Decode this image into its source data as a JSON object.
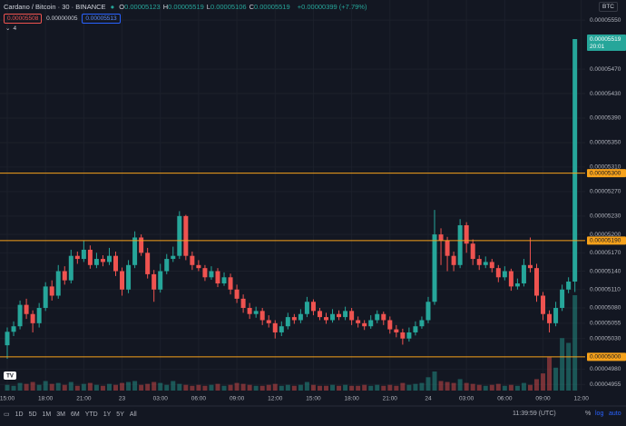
{
  "header": {
    "symbol": "Cardano / Bitcoin · 30 · BINANCE",
    "ohlc": [
      {
        "key": "O",
        "value": "0.00005123"
      },
      {
        "key": "H",
        "value": "0.00005519"
      },
      {
        "key": "L",
        "value": "0.00005106"
      },
      {
        "key": "C",
        "value": "0.00005519"
      }
    ],
    "change": "+0.00000399 (+7.79%)",
    "sell": "0.00005508",
    "spread": "0.00000005",
    "buy": "0.00005513",
    "indicators": "4",
    "currency": "BTC"
  },
  "toolbar": {
    "ranges": [
      "1D",
      "5D",
      "1M",
      "3M",
      "6M",
      "YTD",
      "1Y",
      "5Y",
      "All"
    ],
    "clock": "11:39:59 (UTC)",
    "percent": "%",
    "log": "log",
    "auto": "auto"
  },
  "chart_data": {
    "type": "candlestick",
    "up_color": "#26a69a",
    "down_color": "#ef5350",
    "grid": true,
    "categories": [
      "15:00",
      null,
      null,
      null,
      null,
      null,
      "18:00",
      null,
      null,
      null,
      null,
      null,
      "21:00",
      null,
      null,
      null,
      null,
      null,
      "23",
      null,
      null,
      null,
      null,
      null,
      "03:00",
      null,
      null,
      null,
      null,
      null,
      "06:00",
      null,
      null,
      null,
      null,
      null,
      "09:00",
      null,
      null,
      null,
      null,
      null,
      "12:00",
      null,
      null,
      null,
      null,
      null,
      "15:00",
      null,
      null,
      null,
      null,
      null,
      "18:00",
      null,
      null,
      null,
      null,
      null,
      "21:00",
      null,
      null,
      null,
      null,
      null,
      "24",
      null,
      null,
      null,
      null,
      null,
      "03:00",
      null,
      null,
      null,
      null,
      null,
      "06:00",
      null,
      null,
      null,
      null,
      null,
      "09:00",
      null,
      null,
      null,
      null,
      null,
      "12:00"
    ],
    "open": [
      5.019e-05,
      5.041e-05,
      5.05e-05,
      5.085e-05,
      5.07e-05,
      5.055e-05,
      5.08e-05,
      5.115e-05,
      5.1e-05,
      5.14e-05,
      5.125e-05,
      5.165e-05,
      5.16e-05,
      5.175e-05,
      5.15e-05,
      5.16e-05,
      5.155e-05,
      5.165e-05,
      5.14e-05,
      5.11e-05,
      5.15e-05,
      5.195e-05,
      5.17e-05,
      5.135e-05,
      5.11e-05,
      5.14e-05,
      5.16e-05,
      5.165e-05,
      5.23e-05,
      5.165e-05,
      5.15e-05,
      5.145e-05,
      5.13e-05,
      5.14e-05,
      5.12e-05,
      5.13e-05,
      5.11e-05,
      5.095e-05,
      5.08e-05,
      5.07e-05,
      5.075e-05,
      5.06e-05,
      5.055e-05,
      5.04e-05,
      5.05e-05,
      5.065e-05,
      5.06e-05,
      5.07e-05,
      5.09e-05,
      5.075e-05,
      5.065e-05,
      5.06e-05,
      5.07e-05,
      5.065e-05,
      5.075e-05,
      5.06e-05,
      5.055e-05,
      5.05e-05,
      5.06e-05,
      5.07e-05,
      5.06e-05,
      5.045e-05,
      5.04e-05,
      5.03e-05,
      5.04e-05,
      5.05e-05,
      5.06e-05,
      5.09e-05,
      5.2e-05,
      5.19e-05,
      5.165e-05,
      5.15e-05,
      5.215e-05,
      5.185e-05,
      5.16e-05,
      5.15e-05,
      5.155e-05,
      5.145e-05,
      5.13e-05,
      5.14e-05,
      5.115e-05,
      5.12e-05,
      5.15e-05,
      5.145e-05,
      5.1e-05,
      5.07e-05,
      5.055e-05,
      5.08e-05,
      5.11e-05,
      5.123e-05,
      null
    ],
    "high": [
      5.048e-05,
      5.058e-05,
      5.092e-05,
      5.095e-05,
      5.076e-05,
      5.088e-05,
      5.122e-05,
      5.125e-05,
      5.15e-05,
      5.148e-05,
      5.175e-05,
      5.172e-05,
      5.19e-05,
      5.182e-05,
      5.17e-05,
      5.166e-05,
      5.178e-05,
      5.172e-05,
      5.146e-05,
      5.158e-05,
      5.205e-05,
      5.2e-05,
      5.178e-05,
      5.142e-05,
      5.152e-05,
      5.168e-05,
      5.18e-05,
      5.238e-05,
      5.232e-05,
      5.172e-05,
      5.158e-05,
      5.15e-05,
      5.148e-05,
      5.145e-05,
      5.138e-05,
      5.136e-05,
      5.118e-05,
      5.102e-05,
      5.088e-05,
      5.082e-05,
      5.08e-05,
      5.068e-05,
      5.06e-05,
      5.058e-05,
      5.072e-05,
      5.07e-05,
      5.078e-05,
      5.098e-05,
      5.094e-05,
      5.08e-05,
      5.072e-05,
      5.078e-05,
      5.076e-05,
      5.082e-05,
      5.08e-05,
      5.066e-05,
      5.06e-05,
      5.068e-05,
      5.076e-05,
      5.074e-05,
      5.066e-05,
      5.052e-05,
      5.046e-05,
      5.048e-05,
      5.058e-05,
      5.066e-05,
      5.098e-05,
      5.24e-05,
      5.21e-05,
      5.196e-05,
      5.172e-05,
      5.225e-05,
      5.22e-05,
      5.192e-05,
      5.166e-05,
      5.164e-05,
      5.16e-05,
      5.15e-05,
      5.148e-05,
      5.144e-05,
      5.128e-05,
      5.16e-05,
      5.195e-05,
      5.152e-05,
      5.106e-05,
      5.076e-05,
      5.09e-05,
      5.118e-05,
      5.13e-05,
      5.519e-05,
      null
    ],
    "low": [
      4.997e-05,
      5.034e-05,
      5.045e-05,
      5.062e-05,
      5.04e-05,
      5.048e-05,
      5.075e-05,
      5.092e-05,
      5.095e-05,
      5.118e-05,
      5.12e-05,
      5.152e-05,
      5.155e-05,
      5.144e-05,
      5.145e-05,
      5.148e-05,
      5.15e-05,
      5.132e-05,
      5.1e-05,
      5.104e-05,
      5.145e-05,
      5.165e-05,
      5.128e-05,
      5.09e-05,
      5.105e-05,
      5.135e-05,
      5.155e-05,
      5.16e-05,
      5.158e-05,
      5.142e-05,
      5.14e-05,
      5.124e-05,
      5.126e-05,
      5.114e-05,
      5.116e-05,
      5.102e-05,
      5.088e-05,
      5.072e-05,
      5.062e-05,
      5.064e-05,
      5.052e-05,
      5.048e-05,
      5.03e-05,
      5.034e-05,
      5.045e-05,
      5.054e-05,
      5.055e-05,
      5.065e-05,
      5.068e-05,
      5.06e-05,
      5.054e-05,
      5.056e-05,
      5.06e-05,
      5.06e-05,
      5.052e-05,
      5.048e-05,
      5.044e-05,
      5.046e-05,
      5.055e-05,
      5.052e-05,
      5.038e-05,
      5.032e-05,
      5.02e-05,
      5.025e-05,
      5.035e-05,
      5.046e-05,
      5.055e-05,
      5.085e-05,
      5.15e-05,
      5.14e-05,
      5.14e-05,
      5.145e-05,
      5.17e-05,
      5.15e-05,
      5.142e-05,
      5.145e-05,
      5.138e-05,
      5.122e-05,
      5.125e-05,
      5.108e-05,
      5.11e-05,
      5.115e-05,
      5.138e-05,
      5.09e-05,
      5.06e-05,
      5.04e-05,
      5.05e-05,
      5.075e-05,
      5.104e-05,
      5.106e-05,
      null
    ],
    "close": [
      5.041e-05,
      5.05e-05,
      5.085e-05,
      5.07e-05,
      5.055e-05,
      5.08e-05,
      5.115e-05,
      5.1e-05,
      5.14e-05,
      5.125e-05,
      5.165e-05,
      5.16e-05,
      5.175e-05,
      5.15e-05,
      5.16e-05,
      5.155e-05,
      5.165e-05,
      5.14e-05,
      5.11e-05,
      5.15e-05,
      5.195e-05,
      5.17e-05,
      5.135e-05,
      5.11e-05,
      5.14e-05,
      5.16e-05,
      5.165e-05,
      5.23e-05,
      5.165e-05,
      5.15e-05,
      5.145e-05,
      5.13e-05,
      5.14e-05,
      5.12e-05,
      5.13e-05,
      5.11e-05,
      5.095e-05,
      5.08e-05,
      5.07e-05,
      5.075e-05,
      5.06e-05,
      5.055e-05,
      5.04e-05,
      5.05e-05,
      5.065e-05,
      5.06e-05,
      5.07e-05,
      5.09e-05,
      5.075e-05,
      5.065e-05,
      5.06e-05,
      5.07e-05,
      5.065e-05,
      5.075e-05,
      5.06e-05,
      5.055e-05,
      5.05e-05,
      5.06e-05,
      5.07e-05,
      5.06e-05,
      5.045e-05,
      5.04e-05,
      5.03e-05,
      5.04e-05,
      5.05e-05,
      5.06e-05,
      5.09e-05,
      5.2e-05,
      5.19e-05,
      5.165e-05,
      5.15e-05,
      5.215e-05,
      5.185e-05,
      5.16e-05,
      5.15e-05,
      5.155e-05,
      5.145e-05,
      5.13e-05,
      5.14e-05,
      5.115e-05,
      5.12e-05,
      5.15e-05,
      5.145e-05,
      5.1e-05,
      5.07e-05,
      5.055e-05,
      5.08e-05,
      5.11e-05,
      5.123e-05,
      5.519e-05,
      null
    ],
    "volume": [
      6,
      5,
      8,
      7,
      9,
      6,
      10,
      7,
      8,
      6,
      9,
      5,
      7,
      8,
      6,
      5,
      7,
      6,
      8,
      9,
      10,
      6,
      7,
      9,
      8,
      6,
      10,
      7,
      6,
      5,
      6,
      5,
      6,
      7,
      5,
      6,
      8,
      7,
      6,
      5,
      5,
      6,
      7,
      5,
      6,
      5,
      6,
      9,
      6,
      5,
      5,
      6,
      5,
      6,
      5,
      5,
      6,
      5,
      6,
      5,
      6,
      5,
      8,
      6,
      7,
      8,
      14,
      20,
      10,
      9,
      8,
      12,
      8,
      7,
      6,
      5,
      6,
      7,
      5,
      6,
      5,
      8,
      6,
      12,
      18,
      35,
      24,
      55,
      50,
      100,
      null
    ],
    "ylim": [
      4.945e-05,
      5.568e-05
    ],
    "yticks": [
      {
        "value": 5.55e-05,
        "label": "0.00005550"
      },
      {
        "value": 5.47e-05,
        "label": "0.00005470"
      },
      {
        "value": 5.43e-05,
        "label": "0.00005430"
      },
      {
        "value": 5.39e-05,
        "label": "0.00005390"
      },
      {
        "value": 5.35e-05,
        "label": "0.00005350"
      },
      {
        "value": 5.31e-05,
        "label": "0.00005310"
      },
      {
        "value": 5.27e-05,
        "label": "0.00005270"
      },
      {
        "value": 5.23e-05,
        "label": "0.00005230"
      },
      {
        "value": 5.2e-05,
        "label": "0.00005200"
      },
      {
        "value": 5.17e-05,
        "label": "0.00005170"
      },
      {
        "value": 5.14e-05,
        "label": "0.00005140"
      },
      {
        "value": 5.11e-05,
        "label": "0.00005110"
      },
      {
        "value": 5.08e-05,
        "label": "0.00005080"
      },
      {
        "value": 5.055e-05,
        "label": "0.00005055"
      },
      {
        "value": 5.03e-05,
        "label": "0.00005030"
      },
      {
        "value": 4.98e-05,
        "label": "0.00004980"
      },
      {
        "value": 4.955e-05,
        "label": "0.00004955"
      }
    ],
    "hlines": [
      {
        "value": 5.3e-05,
        "label": "0.00005300"
      },
      {
        "value": 5.19e-05,
        "label": "0.00005190"
      },
      {
        "value": 5e-05,
        "label": "0.00005000"
      }
    ],
    "hline_color": "#f7a21b",
    "price_tag": {
      "value": 5.519e-05,
      "label": "0.00005519",
      "countdown": "20:01"
    }
  }
}
